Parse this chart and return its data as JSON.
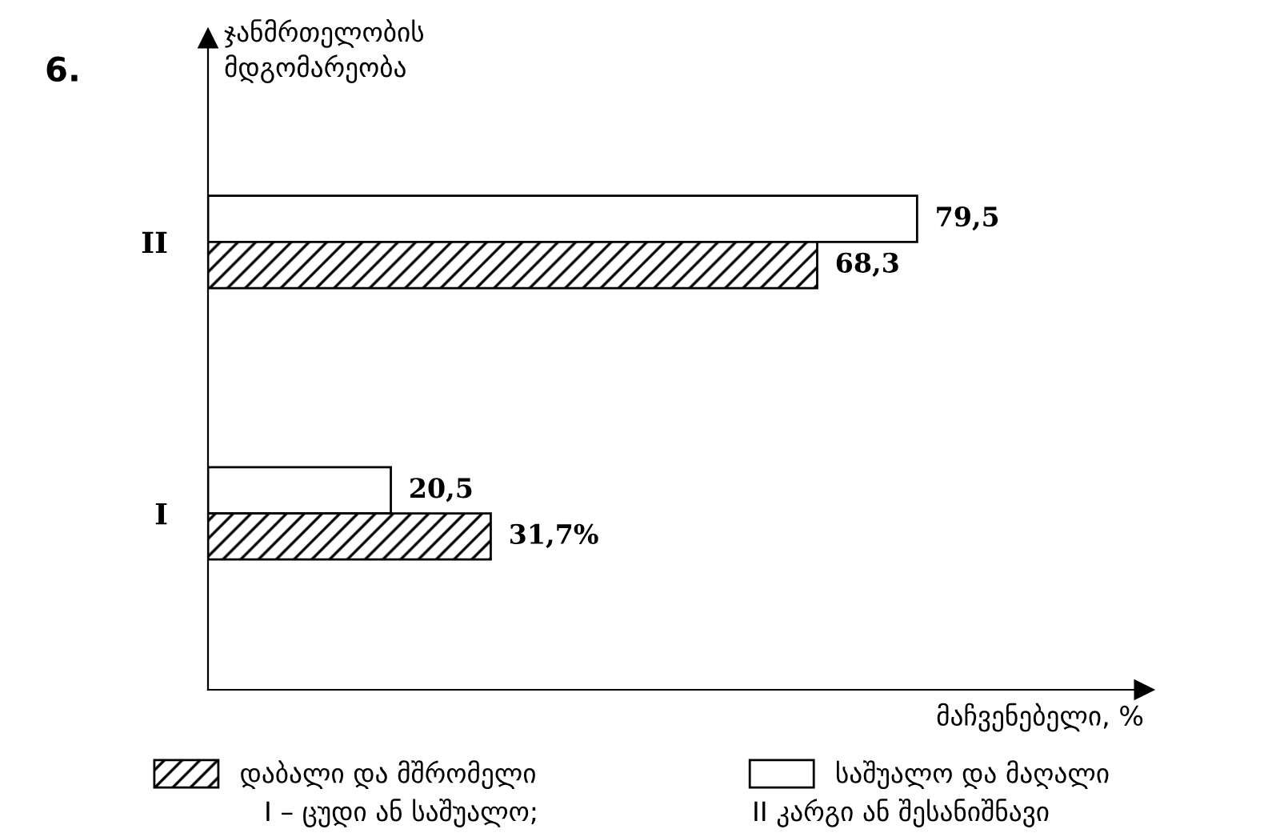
{
  "chart_data": {
    "type": "bar",
    "orientation": "horizontal",
    "title": "6.",
    "ylabel": "ჯანმრთელობის\nმდგომარეობა",
    "xlabel": "მაჩვენებელი, %",
    "categories": [
      "II",
      "I"
    ],
    "series": [
      {
        "name": "საშუალო და მაღალი",
        "color": "#000000",
        "values": [
          79.5,
          20.5
        ],
        "value_labels": [
          "79,5",
          "20,5"
        ]
      },
      {
        "name": "დაბალი და მშრომელი",
        "color": "#000000",
        "values": [
          68.3,
          31.7
        ],
        "value_labels": [
          "68,3",
          "31,7%"
        ]
      }
    ],
    "legend": "bottom",
    "grid": false,
    "annotations": [
      "I – ცუდი ან საშუალო;",
      "II კარგი ან შესანიშნავი"
    ]
  }
}
